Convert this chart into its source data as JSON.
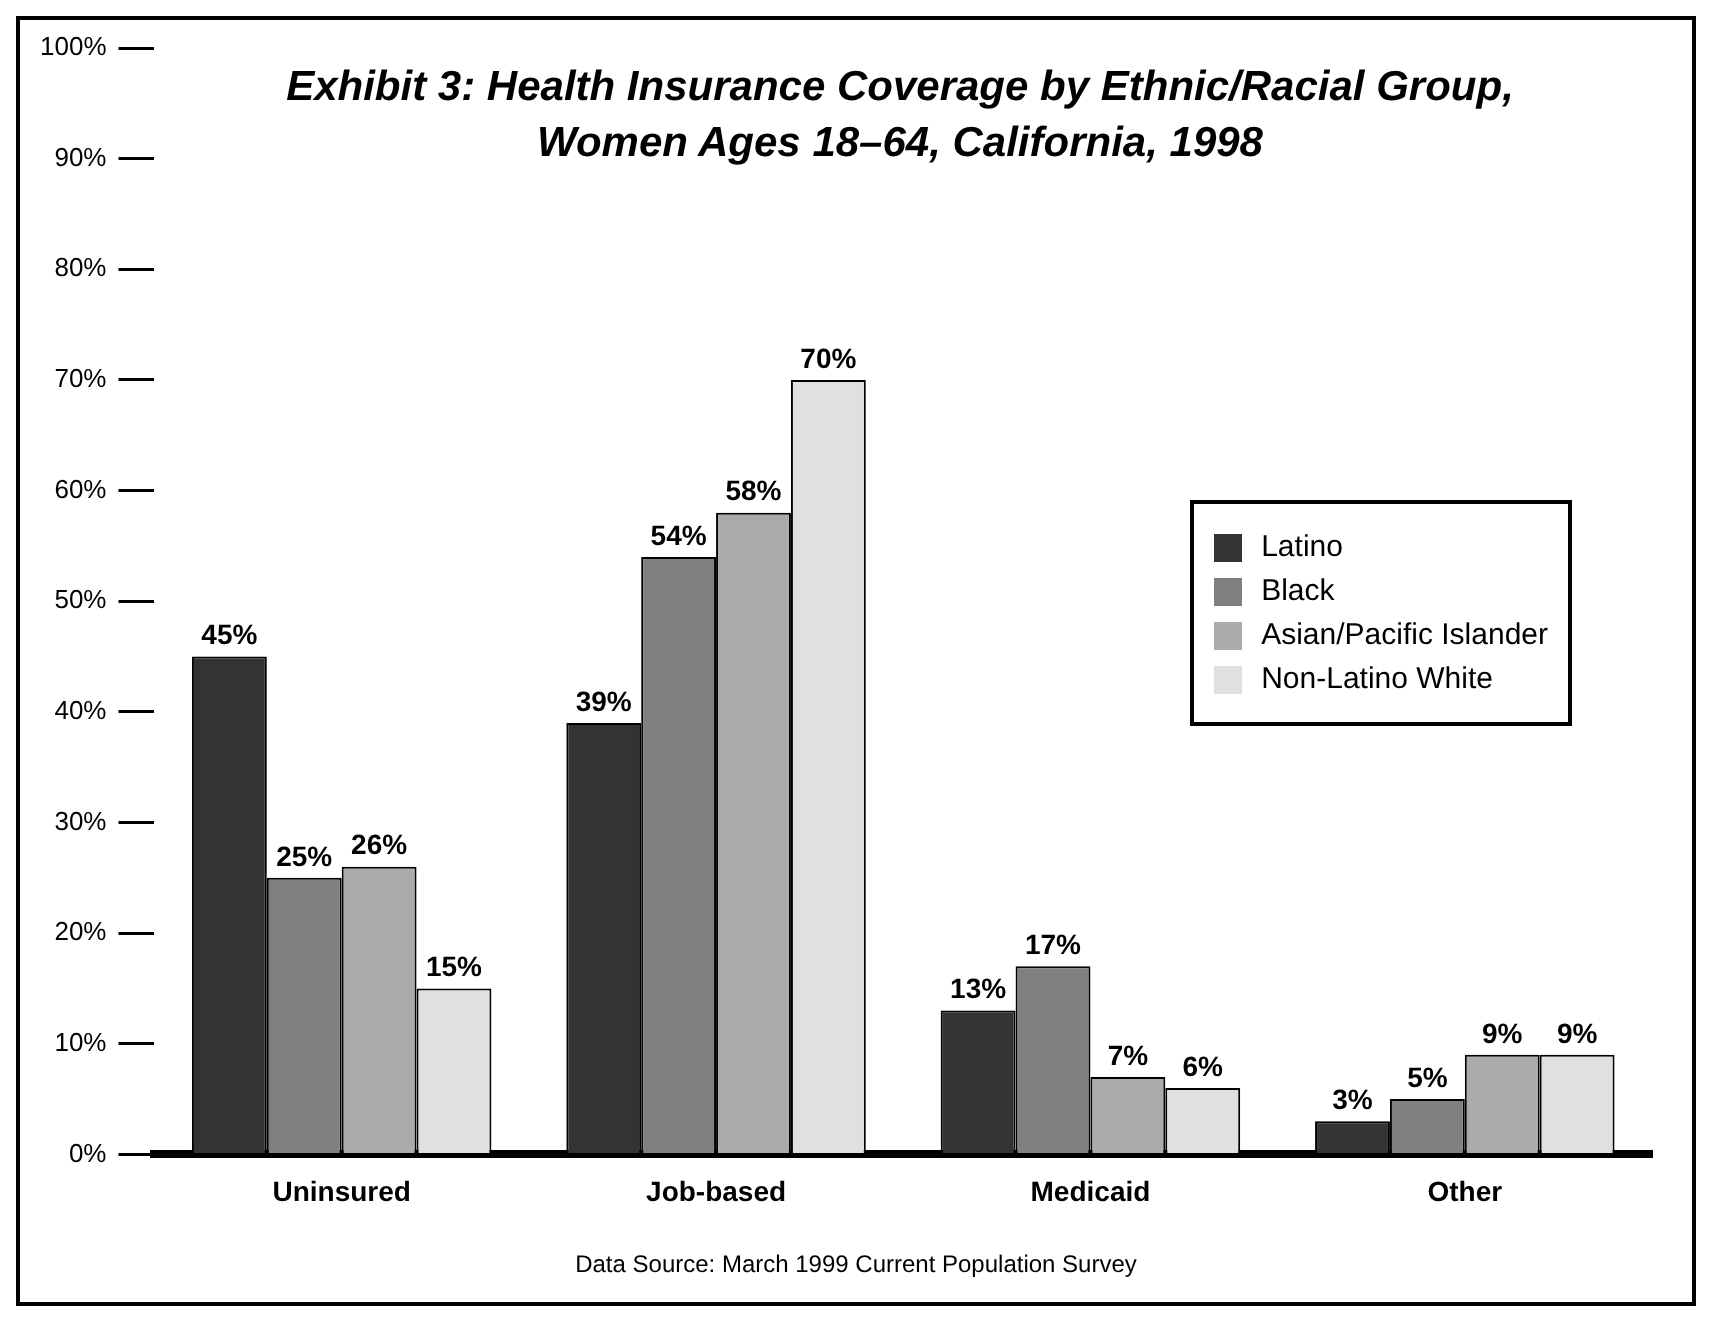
{
  "chart_data": {
    "type": "bar",
    "title": "Exhibit 3: Health Insurance Coverage by Ethnic/Racial Group, Women Ages 18–64, California, 1998",
    "categories": [
      "Uninsured",
      "Job-based",
      "Medicaid",
      "Other"
    ],
    "series": [
      {
        "name": "Latino",
        "color": "#333333",
        "values": [
          45,
          39,
          13,
          3
        ],
        "value_labels": [
          "45%",
          "39%",
          "13%",
          "3%"
        ]
      },
      {
        "name": "Black",
        "color": "#808080",
        "values": [
          25,
          54,
          17,
          5
        ],
        "value_labels": [
          "25%",
          "54%",
          "17%",
          "5%"
        ]
      },
      {
        "name": "Asian/Pacific Islander",
        "color": "#ababab",
        "values": [
          26,
          58,
          7,
          9
        ],
        "value_labels": [
          "26%",
          "58%",
          "7%",
          "9%"
        ]
      },
      {
        "name": "Non-Latino White",
        "color": "#e0e0e0",
        "values": [
          15,
          70,
          6,
          9
        ],
        "value_labels": [
          "15%",
          "70%",
          "6%",
          "9%"
        ]
      }
    ],
    "ylim": [
      0,
      100
    ],
    "yticks": [
      {
        "value": 0,
        "label": "0%"
      },
      {
        "value": 10,
        "label": "10%"
      },
      {
        "value": 20,
        "label": "20%"
      },
      {
        "value": 30,
        "label": "30%"
      },
      {
        "value": 40,
        "label": "40%"
      },
      {
        "value": 50,
        "label": "50%"
      },
      {
        "value": 60,
        "label": "60%"
      },
      {
        "value": 70,
        "label": "70%"
      },
      {
        "value": 80,
        "label": "80%"
      },
      {
        "value": 90,
        "label": "90%"
      },
      {
        "value": 100,
        "label": "100%"
      }
    ],
    "legend": "right",
    "annotations": [
      "Data Source: March 1999 Current Population Survey"
    ]
  }
}
